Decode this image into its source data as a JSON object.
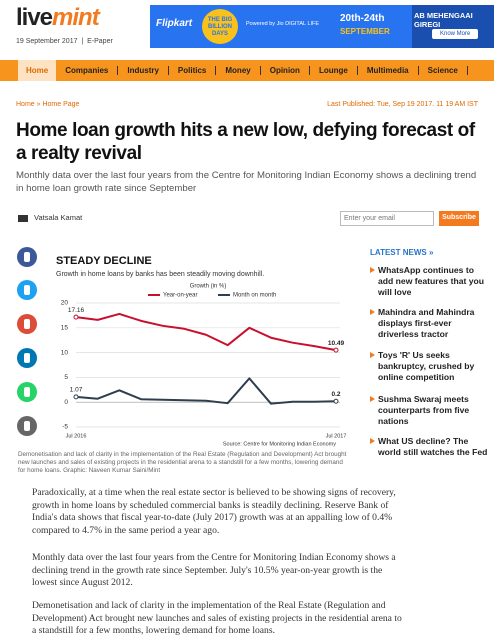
{
  "header": {
    "logo_live": "live",
    "logo_mint": "mint",
    "date": "19 September 2017",
    "epaper": "E-Paper"
  },
  "ad": {
    "brand": "Flipkart",
    "event": "THE BIG BILLION DAYS",
    "powered": "Powered by Jio DIGITAL LIFE",
    "dates": "20th-24th",
    "month": "SEPTEMBER",
    "slogan": "AB MEHENGAAI GIREGI",
    "cta": "Know More"
  },
  "nav": [
    "Home",
    "Companies",
    "Industry",
    "Politics",
    "Money",
    "Opinion",
    "Lounge",
    "Multimedia",
    "Science"
  ],
  "breadcrumb": "Home » Home Page",
  "published": "Last Published: Tue, Sep 19 2017. 11 19 AM IST",
  "article": {
    "title": "Home loan growth hits a new low, defying forecast of a realty revival",
    "summary": "Monthly data over the last four years from the Centre for Monitoring Indian Economy shows a declining trend in home loan growth rate since September",
    "author": "Vatsala Kamat",
    "email_placeholder": "Enter your email",
    "subscribe": "Subscribe",
    "caption": "Demonetisation and lack of clarity in the implementation of the Real Estate (Regulation and Development) Act brought new launches and sales of existing projects in the residential arena to a standstill for a few months, lowering demand for home loans. Graphic: Naveen Kumar Saini/Mint",
    "paragraphs": [
      "Paradoxically, at a time when the real estate sector is believed to be showing signs of recovery, growth in home loans by scheduled commercial banks is steadily declining. Reserve Bank of India's data shows that fiscal year-to-date (July 2017) growth was at an appalling low of 0.4% compared to 4.7% in the same period a year ago.",
      "Monthly data over the last four years from the Centre for Monitoring Indian Economy shows a declining trend in the growth rate since September. July's 10.5% year-on-year growth is the lowest since August 2012.",
      "Demonetisation and lack of clarity in the implementation of the Real Estate (Regulation and Development) Act brought new launches and sales of existing projects in the residential arena to a standstill for a few months, lowering demand for home loans."
    ]
  },
  "latest_news": {
    "heading": "LATEST NEWS »",
    "items": [
      "WhatsApp continues to add new features that you will love",
      "Mahindra and Mahindra displays first-ever driverless tractor",
      "Toys 'R' Us seeks bankruptcy, crushed by online competition",
      "Sushma Swaraj meets counterparts from five nations",
      "What US decline? The world still watches the Fed"
    ]
  },
  "chart_data": {
    "type": "line",
    "title": "STEADY DECLINE",
    "subtitle": "Growth in home loans by banks has been steadily moving downhill.",
    "legend_title": "Growth (in %)",
    "source": "Source: Centre for Monitoring Indian Economy",
    "categories": [
      "Jul 2016",
      null,
      null,
      null,
      null,
      null,
      null,
      null,
      null,
      null,
      null,
      null,
      "Jul 2017"
    ],
    "series": [
      {
        "name": "Year-on-year",
        "color": "#c8102e",
        "values": [
          17.16,
          16.6,
          17.8,
          16.4,
          15.4,
          14.8,
          13.6,
          11.5,
          15.0,
          13.0,
          12.0,
          11.3,
          10.49
        ]
      },
      {
        "name": "Month on month",
        "color": "#2f3e4e",
        "values": [
          1.07,
          0.7,
          2.4,
          0.6,
          0.5,
          0.4,
          0.3,
          -0.2,
          4.8,
          -0.3,
          0.1,
          0.1,
          0.2
        ]
      }
    ],
    "ylim": [
      -5,
      20
    ],
    "yticks": [
      -5,
      0,
      5,
      10,
      15,
      20
    ],
    "grid": true
  }
}
